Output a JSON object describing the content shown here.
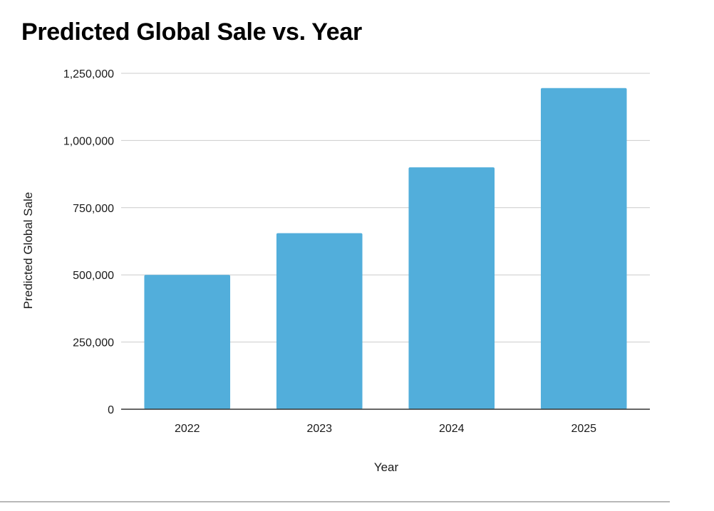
{
  "chart_data": {
    "type": "bar",
    "title": "Predicted Global Sale vs. Year",
    "xlabel": "Year",
    "ylabel": "Predicted Global Sale",
    "categories": [
      "2022",
      "2023",
      "2024",
      "2025"
    ],
    "values": [
      500000,
      655000,
      900000,
      1195000
    ],
    "ylim": [
      0,
      1250000
    ],
    "yticks": [
      0,
      250000,
      500000,
      750000,
      1000000,
      1250000
    ],
    "ytick_labels": [
      "0",
      "250,000",
      "500,000",
      "750,000",
      "1,000,000",
      "1,250,000"
    ],
    "grid": true,
    "legend": "none",
    "colors": {
      "bar": "#52aedb",
      "grid": "#cccccc",
      "axis": "#333333"
    }
  }
}
